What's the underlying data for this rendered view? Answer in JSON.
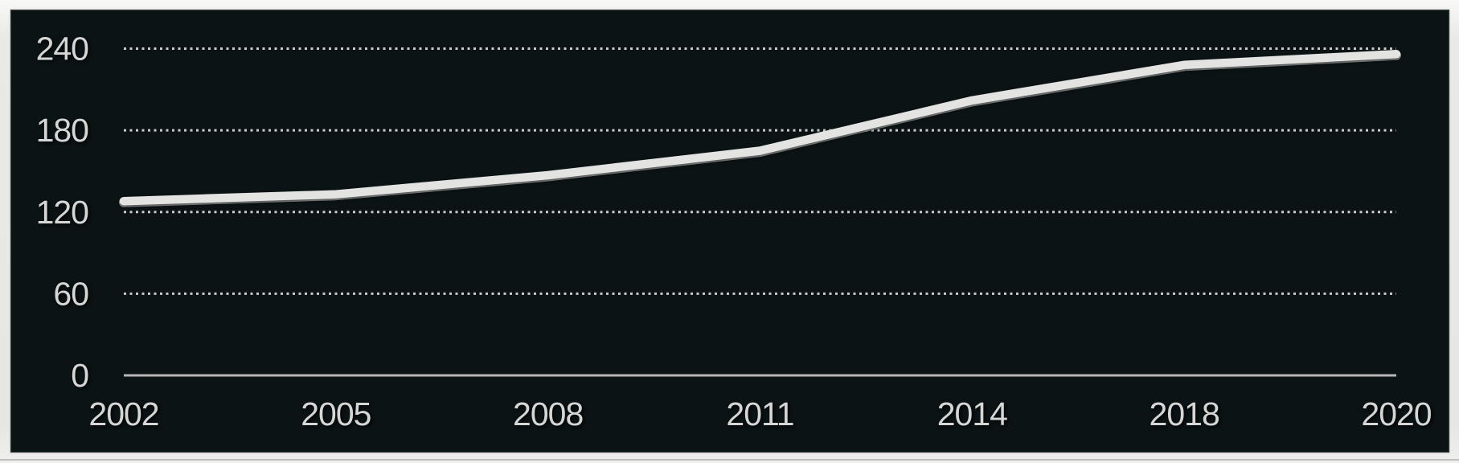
{
  "chart_data": {
    "type": "line",
    "title": "",
    "xlabel": "",
    "ylabel": "",
    "categories": [
      "2002",
      "2005",
      "2008",
      "2011",
      "2014",
      "2018",
      "2020"
    ],
    "values": [
      128,
      133,
      147,
      165,
      202,
      228,
      236
    ],
    "ylim": [
      0,
      240
    ],
    "y_ticks": [
      0,
      60,
      120,
      180,
      240
    ],
    "legend": "none",
    "grid": "horizontal-dotted"
  },
  "theme": {
    "panel_bg": "#0b1315",
    "frame_bg": "#e8e8e6",
    "text_color": "#d6d7d5",
    "grid_dot_color": "#c9cbca",
    "axis_color": "#b4b7b5",
    "line_color": "#e3e3e1"
  }
}
